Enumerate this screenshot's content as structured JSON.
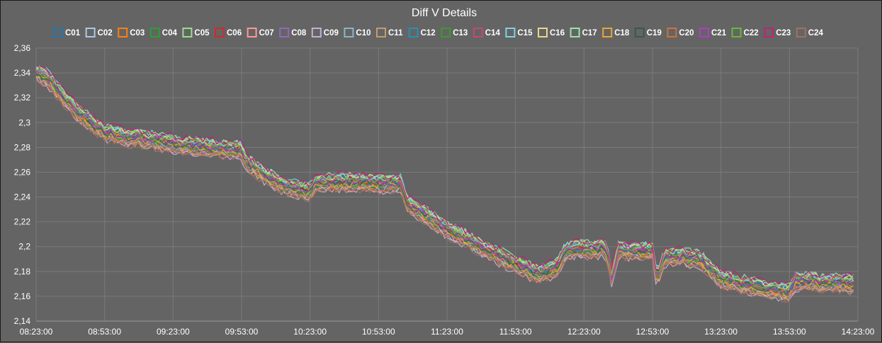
{
  "chart_data": {
    "type": "line",
    "title": "Diff V Details",
    "xlabel": "",
    "ylabel": "",
    "y_tick_labels": [
      "2,36",
      "2,34",
      "2,32",
      "2,3",
      "2,28",
      "2,26",
      "2,24",
      "2,22",
      "2,2",
      "2,18",
      "2,16",
      "2,14"
    ],
    "ylim": [
      2.14,
      2.36
    ],
    "x_tick_labels": [
      "08:23:00",
      "08:53:00",
      "09:23:00",
      "09:53:00",
      "10:23:00",
      "10:53:00",
      "11:23:00",
      "11:53:00",
      "12:23:00",
      "12:53:00",
      "13:23:00",
      "13:53:00",
      "14:23:00"
    ],
    "x_range_minutes": [
      0,
      360
    ],
    "grid": true,
    "legend_position": "top",
    "base_profile": {
      "x_minutes": [
        0,
        5,
        12,
        20,
        30,
        40,
        50,
        60,
        70,
        80,
        90,
        92,
        100,
        110,
        120,
        122,
        128,
        140,
        150,
        160,
        162,
        170,
        180,
        190,
        200,
        210,
        220,
        228,
        232,
        236,
        250,
        252,
        255,
        258,
        270,
        272,
        275,
        278,
        290,
        300,
        310,
        320,
        330,
        332,
        340,
        350,
        358
      ],
      "y": [
        2.34,
        2.336,
        2.32,
        2.305,
        2.292,
        2.288,
        2.286,
        2.283,
        2.281,
        2.279,
        2.278,
        2.268,
        2.258,
        2.248,
        2.244,
        2.251,
        2.252,
        2.252,
        2.251,
        2.251,
        2.236,
        2.226,
        2.214,
        2.205,
        2.195,
        2.186,
        2.178,
        2.183,
        2.197,
        2.198,
        2.198,
        2.174,
        2.197,
        2.197,
        2.196,
        2.172,
        2.192,
        2.192,
        2.191,
        2.174,
        2.17,
        2.166,
        2.163,
        2.172,
        2.172,
        2.171,
        2.17
      ]
    },
    "series": [
      {
        "name": "C01",
        "color": "#1f77b4",
        "offset": 0.002
      },
      {
        "name": "C02",
        "color": "#aec7e8",
        "offset": -0.004
      },
      {
        "name": "C03",
        "color": "#ff7f0e",
        "offset": 0.0
      },
      {
        "name": "C04",
        "color": "#2ca02c",
        "offset": -0.003
      },
      {
        "name": "C05",
        "color": "#98df8a",
        "offset": 0.004
      },
      {
        "name": "C06",
        "color": "#d62728",
        "offset": 0.001
      },
      {
        "name": "C07",
        "color": "#ff9896",
        "offset": -0.005
      },
      {
        "name": "C08",
        "color": "#9467bd",
        "offset": -0.002
      },
      {
        "name": "C09",
        "color": "#c5b0d5",
        "offset": -0.006
      },
      {
        "name": "C10",
        "color": "#8cb4c8",
        "offset": 0.003
      },
      {
        "name": "C11",
        "color": "#c49c6c",
        "offset": -0.004
      },
      {
        "name": "C12",
        "color": "#2a8fb5",
        "offset": 0.001
      },
      {
        "name": "C13",
        "color": "#3d9a2a",
        "offset": -0.001
      },
      {
        "name": "C14",
        "color": "#c8476e",
        "offset": 0.002
      },
      {
        "name": "C15",
        "color": "#7dd3e8",
        "offset": 0.005
      },
      {
        "name": "C16",
        "color": "#e8d88a",
        "offset": 0.004
      },
      {
        "name": "C17",
        "color": "#9fe0a8",
        "offset": 0.005
      },
      {
        "name": "C18",
        "color": "#e8a53a",
        "offset": -0.002
      },
      {
        "name": "C19",
        "color": "#2e5e4e",
        "offset": 0.0
      },
      {
        "name": "C20",
        "color": "#c8743a",
        "offset": -0.005
      },
      {
        "name": "C21",
        "color": "#b03cc8",
        "offset": 0.001
      },
      {
        "name": "C22",
        "color": "#6bb83a",
        "offset": 0.003
      },
      {
        "name": "C23",
        "color": "#c81e78",
        "offset": 0.006
      },
      {
        "name": "C24",
        "color": "#a0706a",
        "offset": -0.006
      }
    ]
  }
}
